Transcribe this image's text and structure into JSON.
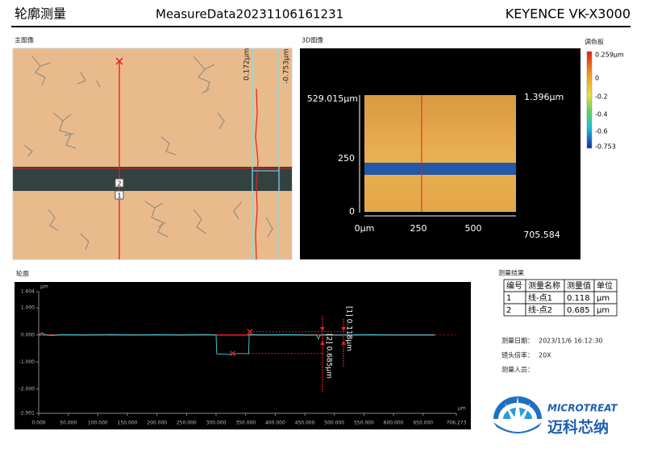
{
  "header": {
    "title": "轮廓测量",
    "file": "MeasureData20231106161231",
    "device": "KEYENCE VK-X3000"
  },
  "main_image": {
    "title": "主图像",
    "labels": [
      "0.172μm",
      "-0.753μm",
      "2",
      "1"
    ]
  },
  "image_3d": {
    "title": "3D图像",
    "y_labels": [
      "529.015μm",
      "250",
      "0"
    ],
    "x_labels": [
      "0μm",
      "250",
      "500",
      "705.584"
    ],
    "z_label": "1.396μm"
  },
  "palette": {
    "title": "调色板",
    "labels": [
      "0.259μm",
      "0",
      "-0.2",
      "-0.4",
      "-0.6",
      "-0.753"
    ]
  },
  "profile_title": "轮廓",
  "chart_data": {
    "type": "line",
    "ylabel": "μm",
    "xlabel": "μm",
    "x": [
      0,
      5,
      10,
      20,
      40,
      80,
      120,
      160,
      200,
      240,
      280,
      300,
      301,
      320,
      340,
      355,
      356,
      380,
      420,
      450,
      470,
      473,
      476,
      520,
      560,
      600,
      640,
      670
    ],
    "series": [
      {
        "color": "#3fc6d8",
        "values": [
          0.0,
          0.08,
          0.02,
          -0.02,
          0.01,
          0.0,
          0.02,
          0.0,
          0.01,
          0.0,
          0.02,
          0.0,
          -0.7,
          -0.72,
          -0.68,
          -0.7,
          0.02,
          0.0,
          0.01,
          0.0,
          0.0,
          -0.15,
          0.0,
          0.0,
          0.01,
          0.0,
          0.0,
          0.0
        ]
      },
      {
        "color": "#e02020",
        "values": [
          0,
          0,
          0,
          0,
          0,
          0,
          0,
          0,
          0,
          0,
          0,
          0,
          0,
          0,
          0,
          0,
          0,
          0,
          0,
          0,
          0,
          0,
          0,
          0,
          0,
          0,
          0,
          0
        ]
      }
    ],
    "markers": {
      "color": "#e02020",
      "x": [
        357,
        328
      ],
      "values": [
        0.118,
        -0.685
      ]
    },
    "annotations": [
      "[1] 0.118μm",
      "[2] 0.685μm"
    ],
    "xlim": [
      0,
      706.273
    ],
    "ylim": [
      -2.901,
      1.604
    ],
    "yticks": [
      1.604,
      {
        "value": 1,
        "label": "1.000"
      },
      {
        "value": 0,
        "label": "0.000"
      },
      {
        "value": -1,
        "label": "-1.000"
      },
      {
        "value": -2,
        "label": "-2.000"
      },
      -2.901
    ],
    "xticks": [
      {
        "value": 0,
        "label": "0.000"
      },
      {
        "value": 50,
        "label": "50.000"
      },
      {
        "value": 100,
        "label": "100.000"
      },
      {
        "value": 150,
        "label": "150.000"
      },
      {
        "value": 200,
        "label": "200.000"
      },
      {
        "value": 250,
        "label": "250.000"
      },
      {
        "value": 300,
        "label": "300.000"
      },
      {
        "value": 350,
        "label": "350.000"
      },
      {
        "value": 400,
        "label": "400.000"
      },
      {
        "value": 450,
        "label": "450.000"
      },
      {
        "value": 500,
        "label": "500.000"
      },
      {
        "value": 550,
        "label": "550.000"
      },
      {
        "value": 600,
        "label": "600.000"
      },
      {
        "value": 650,
        "label": "650.000"
      },
      706.273
    ]
  },
  "results": {
    "title": "测量结果",
    "header": [
      "编号",
      "测量名称",
      "测量值",
      "单位"
    ],
    "rows": [
      [
        "1",
        "线-点1",
        "0.118",
        "μm"
      ],
      [
        "2",
        "线-点2",
        "0.685",
        "μm"
      ]
    ]
  },
  "info": [
    {
      "label": "测量日期：",
      "value": "2023/11/6 16:12:30"
    },
    {
      "label": "镜头倍率：",
      "value": "20X"
    },
    {
      "label": "测量人员："
    }
  ],
  "logo": {
    "en": "MICROTREAT",
    "cn": "迈科芯纳"
  }
}
